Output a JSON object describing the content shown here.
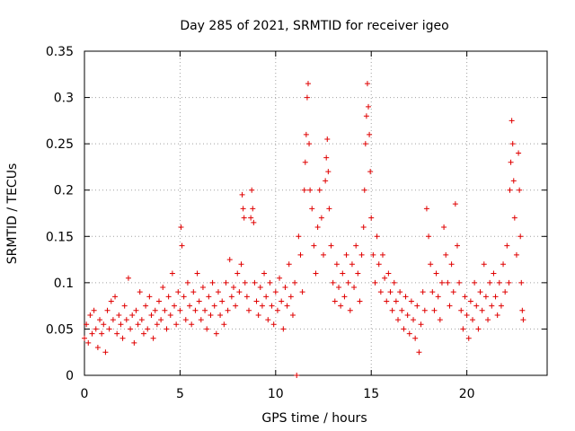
{
  "chart_data": {
    "type": "scatter",
    "title": "Day 285 of 2021, SRMTID for receiver igeo",
    "xlabel": "GPS time / hours",
    "ylabel": "SRMTID / TECUs",
    "xlim": [
      0,
      24.2
    ],
    "ylim": [
      0,
      0.35
    ],
    "xticks": [
      0,
      5,
      10,
      15,
      20
    ],
    "xtick_labels": [
      "0",
      "5",
      "10",
      "15",
      "20"
    ],
    "yticks": [
      0,
      0.05,
      0.1,
      0.15,
      0.2,
      0.25,
      0.3,
      0.35
    ],
    "ytick_labels": [
      "0",
      "0.05",
      "0.1",
      "0.15",
      "0.2",
      "0.25",
      "0.3",
      "0.35"
    ],
    "grid": true,
    "marker": "+",
    "color": "#e00000",
    "series": [
      {
        "name": "SRMTID",
        "points": [
          [
            0.0,
            0.04
          ],
          [
            0.1,
            0.055
          ],
          [
            0.2,
            0.035
          ],
          [
            0.3,
            0.065
          ],
          [
            0.4,
            0.045
          ],
          [
            0.5,
            0.07
          ],
          [
            0.6,
            0.05
          ],
          [
            0.7,
            0.03
          ],
          [
            0.8,
            0.06
          ],
          [
            0.9,
            0.045
          ],
          [
            1.0,
            0.055
          ],
          [
            1.1,
            0.025
          ],
          [
            1.2,
            0.07
          ],
          [
            1.3,
            0.05
          ],
          [
            1.4,
            0.08
          ],
          [
            1.5,
            0.06
          ],
          [
            1.6,
            0.085
          ],
          [
            1.7,
            0.045
          ],
          [
            1.8,
            0.065
          ],
          [
            1.9,
            0.055
          ],
          [
            2.0,
            0.04
          ],
          [
            2.1,
            0.075
          ],
          [
            2.2,
            0.06
          ],
          [
            2.3,
            0.105
          ],
          [
            2.4,
            0.05
          ],
          [
            2.5,
            0.065
          ],
          [
            2.6,
            0.035
          ],
          [
            2.7,
            0.07
          ],
          [
            2.8,
            0.055
          ],
          [
            2.9,
            0.09
          ],
          [
            3.0,
            0.06
          ],
          [
            3.1,
            0.045
          ],
          [
            3.2,
            0.075
          ],
          [
            3.3,
            0.05
          ],
          [
            3.4,
            0.085
          ],
          [
            3.5,
            0.065
          ],
          [
            3.6,
            0.04
          ],
          [
            3.7,
            0.07
          ],
          [
            3.8,
            0.055
          ],
          [
            3.9,
            0.08
          ],
          [
            4.0,
            0.06
          ],
          [
            4.1,
            0.095
          ],
          [
            4.2,
            0.07
          ],
          [
            4.3,
            0.05
          ],
          [
            4.4,
            0.085
          ],
          [
            4.5,
            0.065
          ],
          [
            4.6,
            0.11
          ],
          [
            4.7,
            0.075
          ],
          [
            4.8,
            0.055
          ],
          [
            4.9,
            0.09
          ],
          [
            5.0,
            0.07
          ],
          [
            5.05,
            0.16
          ],
          [
            5.1,
            0.14
          ],
          [
            5.2,
            0.085
          ],
          [
            5.3,
            0.06
          ],
          [
            5.4,
            0.1
          ],
          [
            5.5,
            0.075
          ],
          [
            5.6,
            0.055
          ],
          [
            5.7,
            0.09
          ],
          [
            5.8,
            0.07
          ],
          [
            5.9,
            0.11
          ],
          [
            6.0,
            0.08
          ],
          [
            6.1,
            0.06
          ],
          [
            6.2,
            0.095
          ],
          [
            6.3,
            0.07
          ],
          [
            6.4,
            0.05
          ],
          [
            6.5,
            0.085
          ],
          [
            6.6,
            0.065
          ],
          [
            6.7,
            0.1
          ],
          [
            6.8,
            0.075
          ],
          [
            6.9,
            0.045
          ],
          [
            7.0,
            0.09
          ],
          [
            7.1,
            0.065
          ],
          [
            7.2,
            0.08
          ],
          [
            7.3,
            0.055
          ],
          [
            7.4,
            0.1
          ],
          [
            7.5,
            0.07
          ],
          [
            7.6,
            0.125
          ],
          [
            7.7,
            0.085
          ],
          [
            7.8,
            0.095
          ],
          [
            7.9,
            0.075
          ],
          [
            8.0,
            0.11
          ],
          [
            8.1,
            0.09
          ],
          [
            8.2,
            0.12
          ],
          [
            8.25,
            0.195
          ],
          [
            8.3,
            0.18
          ],
          [
            8.35,
            0.17
          ],
          [
            8.4,
            0.1
          ],
          [
            8.5,
            0.085
          ],
          [
            8.6,
            0.07
          ],
          [
            8.7,
            0.17
          ],
          [
            8.75,
            0.2
          ],
          [
            8.8,
            0.18
          ],
          [
            8.85,
            0.165
          ],
          [
            8.9,
            0.1
          ],
          [
            9.0,
            0.08
          ],
          [
            9.1,
            0.065
          ],
          [
            9.2,
            0.095
          ],
          [
            9.3,
            0.075
          ],
          [
            9.4,
            0.11
          ],
          [
            9.5,
            0.085
          ],
          [
            9.6,
            0.06
          ],
          [
            9.7,
            0.1
          ],
          [
            9.8,
            0.075
          ],
          [
            9.9,
            0.055
          ],
          [
            10.0,
            0.09
          ],
          [
            10.1,
            0.07
          ],
          [
            10.2,
            0.105
          ],
          [
            10.3,
            0.08
          ],
          [
            10.4,
            0.05
          ],
          [
            10.5,
            0.095
          ],
          [
            10.6,
            0.075
          ],
          [
            10.7,
            0.12
          ],
          [
            10.8,
            0.085
          ],
          [
            10.9,
            0.065
          ],
          [
            11.0,
            0.1
          ],
          [
            11.1,
            0.0
          ],
          [
            11.2,
            0.15
          ],
          [
            11.3,
            0.13
          ],
          [
            11.4,
            0.09
          ],
          [
            11.5,
            0.2
          ],
          [
            11.55,
            0.23
          ],
          [
            11.6,
            0.26
          ],
          [
            11.65,
            0.3
          ],
          [
            11.7,
            0.315
          ],
          [
            11.75,
            0.25
          ],
          [
            11.8,
            0.2
          ],
          [
            11.9,
            0.18
          ],
          [
            12.0,
            0.14
          ],
          [
            12.1,
            0.11
          ],
          [
            12.2,
            0.16
          ],
          [
            12.3,
            0.2
          ],
          [
            12.4,
            0.17
          ],
          [
            12.5,
            0.13
          ],
          [
            12.6,
            0.21
          ],
          [
            12.65,
            0.235
          ],
          [
            12.7,
            0.255
          ],
          [
            12.75,
            0.22
          ],
          [
            12.8,
            0.18
          ],
          [
            12.9,
            0.14
          ],
          [
            13.0,
            0.1
          ],
          [
            13.1,
            0.08
          ],
          [
            13.2,
            0.12
          ],
          [
            13.3,
            0.095
          ],
          [
            13.4,
            0.075
          ],
          [
            13.5,
            0.11
          ],
          [
            13.6,
            0.085
          ],
          [
            13.7,
            0.13
          ],
          [
            13.8,
            0.1
          ],
          [
            13.9,
            0.07
          ],
          [
            14.0,
            0.12
          ],
          [
            14.1,
            0.095
          ],
          [
            14.2,
            0.14
          ],
          [
            14.3,
            0.11
          ],
          [
            14.4,
            0.08
          ],
          [
            14.5,
            0.13
          ],
          [
            14.6,
            0.16
          ],
          [
            14.65,
            0.2
          ],
          [
            14.7,
            0.25
          ],
          [
            14.75,
            0.28
          ],
          [
            14.8,
            0.315
          ],
          [
            14.85,
            0.29
          ],
          [
            14.9,
            0.26
          ],
          [
            14.95,
            0.22
          ],
          [
            15.0,
            0.17
          ],
          [
            15.1,
            0.13
          ],
          [
            15.2,
            0.1
          ],
          [
            15.3,
            0.15
          ],
          [
            15.4,
            0.12
          ],
          [
            15.5,
            0.09
          ],
          [
            15.6,
            0.13
          ],
          [
            15.7,
            0.105
          ],
          [
            15.8,
            0.08
          ],
          [
            15.9,
            0.11
          ],
          [
            16.0,
            0.09
          ],
          [
            16.1,
            0.07
          ],
          [
            16.2,
            0.1
          ],
          [
            16.3,
            0.08
          ],
          [
            16.4,
            0.06
          ],
          [
            16.5,
            0.09
          ],
          [
            16.6,
            0.07
          ],
          [
            16.7,
            0.05
          ],
          [
            16.8,
            0.085
          ],
          [
            16.9,
            0.065
          ],
          [
            17.0,
            0.045
          ],
          [
            17.1,
            0.08
          ],
          [
            17.2,
            0.06
          ],
          [
            17.3,
            0.04
          ],
          [
            17.4,
            0.075
          ],
          [
            17.5,
            0.025
          ],
          [
            17.6,
            0.055
          ],
          [
            17.7,
            0.09
          ],
          [
            17.8,
            0.07
          ],
          [
            17.9,
            0.18
          ],
          [
            18.0,
            0.15
          ],
          [
            18.1,
            0.12
          ],
          [
            18.2,
            0.09
          ],
          [
            18.3,
            0.07
          ],
          [
            18.4,
            0.11
          ],
          [
            18.5,
            0.085
          ],
          [
            18.6,
            0.06
          ],
          [
            18.7,
            0.1
          ],
          [
            18.8,
            0.16
          ],
          [
            18.9,
            0.13
          ],
          [
            19.0,
            0.1
          ],
          [
            19.1,
            0.075
          ],
          [
            19.2,
            0.12
          ],
          [
            19.3,
            0.09
          ],
          [
            19.4,
            0.185
          ],
          [
            19.5,
            0.14
          ],
          [
            19.6,
            0.1
          ],
          [
            19.7,
            0.07
          ],
          [
            19.8,
            0.05
          ],
          [
            19.9,
            0.085
          ],
          [
            20.0,
            0.065
          ],
          [
            20.1,
            0.04
          ],
          [
            20.2,
            0.08
          ],
          [
            20.3,
            0.06
          ],
          [
            20.4,
            0.1
          ],
          [
            20.5,
            0.075
          ],
          [
            20.6,
            0.05
          ],
          [
            20.7,
            0.09
          ],
          [
            20.8,
            0.07
          ],
          [
            20.9,
            0.12
          ],
          [
            21.0,
            0.085
          ],
          [
            21.1,
            0.06
          ],
          [
            21.2,
            0.1
          ],
          [
            21.3,
            0.075
          ],
          [
            21.4,
            0.11
          ],
          [
            21.5,
            0.085
          ],
          [
            21.6,
            0.065
          ],
          [
            21.7,
            0.1
          ],
          [
            21.8,
            0.075
          ],
          [
            21.9,
            0.12
          ],
          [
            22.0,
            0.09
          ],
          [
            22.1,
            0.14
          ],
          [
            22.2,
            0.1
          ],
          [
            22.25,
            0.2
          ],
          [
            22.3,
            0.23
          ],
          [
            22.35,
            0.275
          ],
          [
            22.4,
            0.25
          ],
          [
            22.45,
            0.21
          ],
          [
            22.5,
            0.17
          ],
          [
            22.6,
            0.13
          ],
          [
            22.7,
            0.24
          ],
          [
            22.75,
            0.2
          ],
          [
            22.8,
            0.15
          ],
          [
            22.85,
            0.1
          ],
          [
            22.9,
            0.07
          ],
          [
            22.95,
            0.06
          ]
        ]
      }
    ]
  }
}
